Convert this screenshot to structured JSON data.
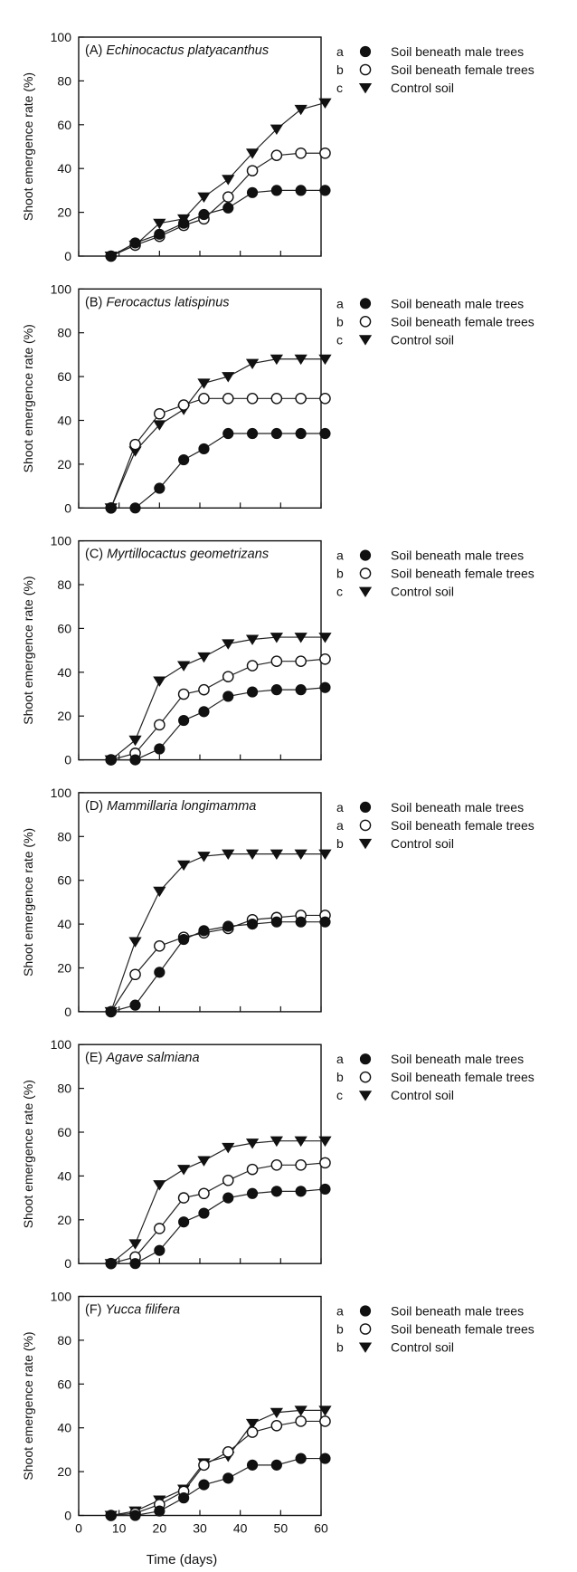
{
  "figure": {
    "xlabel": "Time (days)",
    "ylabel": "Shoot emergence rate (%)",
    "x_ticks": [
      0,
      10,
      20,
      30,
      40,
      50,
      60
    ],
    "y_ticks": [
      0,
      20,
      40,
      60,
      80,
      100
    ]
  },
  "chart_data": [
    {
      "type": "line",
      "panel_label": "(A)",
      "title": "Echinocactus platyacanthus",
      "xlabel": "Time (days)",
      "ylabel": "Shoot emergence rate (%)",
      "xlim": [
        0,
        60
      ],
      "ylim": [
        0,
        100
      ],
      "x": [
        8,
        14,
        20,
        26,
        31,
        37,
        43,
        49,
        55,
        61
      ],
      "series": [
        {
          "name": "Soil beneath male trees",
          "letter": "a",
          "marker": "filled-circle",
          "values": [
            0,
            6,
            10,
            15,
            19,
            22,
            29,
            30,
            30,
            30
          ]
        },
        {
          "name": "Soil beneath female trees",
          "letter": "b",
          "marker": "open-circle",
          "values": [
            0,
            5,
            9,
            14,
            17,
            27,
            39,
            46,
            47,
            47
          ]
        },
        {
          "name": "Control soil",
          "letter": "c",
          "marker": "filled-triangle-down",
          "values": [
            0,
            5,
            15,
            17,
            27,
            35,
            47,
            58,
            67,
            70
          ]
        }
      ]
    },
    {
      "type": "line",
      "panel_label": "(B)",
      "title": "Ferocactus latispinus",
      "xlabel": "Time (days)",
      "ylabel": "Shoot emergence rate (%)",
      "xlim": [
        0,
        60
      ],
      "ylim": [
        0,
        100
      ],
      "x": [
        8,
        14,
        20,
        26,
        31,
        37,
        43,
        49,
        55,
        61
      ],
      "series": [
        {
          "name": "Soil beneath male trees",
          "letter": "a",
          "marker": "filled-circle",
          "values": [
            0,
            0,
            9,
            22,
            27,
            34,
            34,
            34,
            34,
            34
          ]
        },
        {
          "name": "Soil beneath female trees",
          "letter": "b",
          "marker": "open-circle",
          "values": [
            0,
            29,
            43,
            47,
            50,
            50,
            50,
            50,
            50,
            50
          ]
        },
        {
          "name": "Control soil",
          "letter": "c",
          "marker": "filled-triangle-down",
          "values": [
            0,
            26,
            38,
            45,
            57,
            60,
            66,
            68,
            68,
            68
          ]
        }
      ]
    },
    {
      "type": "line",
      "panel_label": "(C)",
      "title": "Myrtillocactus geometrizans",
      "xlabel": "Time (days)",
      "ylabel": "Shoot emergence rate (%)",
      "xlim": [
        0,
        60
      ],
      "ylim": [
        0,
        100
      ],
      "x": [
        8,
        14,
        20,
        26,
        31,
        37,
        43,
        49,
        55,
        61
      ],
      "series": [
        {
          "name": "Soil beneath male trees",
          "letter": "a",
          "marker": "filled-circle",
          "values": [
            0,
            0,
            5,
            18,
            22,
            29,
            31,
            32,
            32,
            33
          ]
        },
        {
          "name": "Soil beneath female trees",
          "letter": "b",
          "marker": "open-circle",
          "values": [
            0,
            3,
            16,
            30,
            32,
            38,
            43,
            45,
            45,
            46
          ]
        },
        {
          "name": "Control soil",
          "letter": "c",
          "marker": "filled-triangle-down",
          "values": [
            0,
            9,
            36,
            43,
            47,
            53,
            55,
            56,
            56,
            56
          ]
        }
      ]
    },
    {
      "type": "line",
      "panel_label": "(D)",
      "title": "Mammillaria longimamma",
      "xlabel": "Time (days)",
      "ylabel": "Shoot emergence rate (%)",
      "xlim": [
        0,
        60
      ],
      "ylim": [
        0,
        100
      ],
      "x": [
        8,
        14,
        20,
        26,
        31,
        37,
        43,
        49,
        55,
        61
      ],
      "series": [
        {
          "name": "Soil beneath male trees",
          "letter": "a",
          "marker": "filled-circle",
          "values": [
            0,
            3,
            18,
            33,
            37,
            39,
            40,
            41,
            41,
            41
          ]
        },
        {
          "name": "Soil beneath female trees",
          "letter": "a",
          "marker": "open-circle",
          "values": [
            0,
            17,
            30,
            34,
            36,
            38,
            42,
            43,
            44,
            44
          ]
        },
        {
          "name": "Control soil",
          "letter": "b",
          "marker": "filled-triangle-down",
          "values": [
            0,
            32,
            55,
            67,
            71,
            72,
            72,
            72,
            72,
            72
          ]
        }
      ]
    },
    {
      "type": "line",
      "panel_label": "(E)",
      "title": "Agave salmiana",
      "xlabel": "Time (days)",
      "ylabel": "Shoot emergence rate (%)",
      "xlim": [
        0,
        60
      ],
      "ylim": [
        0,
        100
      ],
      "x": [
        8,
        14,
        20,
        26,
        31,
        37,
        43,
        49,
        55,
        61
      ],
      "series": [
        {
          "name": "Soil beneath male trees",
          "letter": "a",
          "marker": "filled-circle",
          "values": [
            0,
            0,
            6,
            19,
            23,
            30,
            32,
            33,
            33,
            34
          ]
        },
        {
          "name": "Soil beneath female trees",
          "letter": "b",
          "marker": "open-circle",
          "values": [
            0,
            3,
            16,
            30,
            32,
            38,
            43,
            45,
            45,
            46
          ]
        },
        {
          "name": "Control soil",
          "letter": "c",
          "marker": "filled-triangle-down",
          "values": [
            0,
            9,
            36,
            43,
            47,
            53,
            55,
            56,
            56,
            56
          ]
        }
      ]
    },
    {
      "type": "line",
      "panel_label": "(F)",
      "title": "Yucca filifera",
      "xlabel": "Time (days)",
      "ylabel": "Shoot emergence rate (%)",
      "xlim": [
        0,
        60
      ],
      "ylim": [
        0,
        100
      ],
      "x": [
        8,
        14,
        20,
        26,
        31,
        37,
        43,
        49,
        55,
        61
      ],
      "series": [
        {
          "name": "Soil beneath male trees",
          "letter": "a",
          "marker": "filled-circle",
          "values": [
            0,
            0,
            2,
            8,
            14,
            17,
            23,
            23,
            26,
            26
          ]
        },
        {
          "name": "Soil beneath female trees",
          "letter": "b",
          "marker": "open-circle",
          "values": [
            0,
            1,
            5,
            11,
            23,
            29,
            38,
            41,
            43,
            43
          ]
        },
        {
          "name": "Control soil",
          "letter": "b",
          "marker": "filled-triangle-down",
          "values": [
            0,
            2,
            7,
            12,
            24,
            27,
            42,
            47,
            48,
            48
          ]
        }
      ]
    }
  ]
}
